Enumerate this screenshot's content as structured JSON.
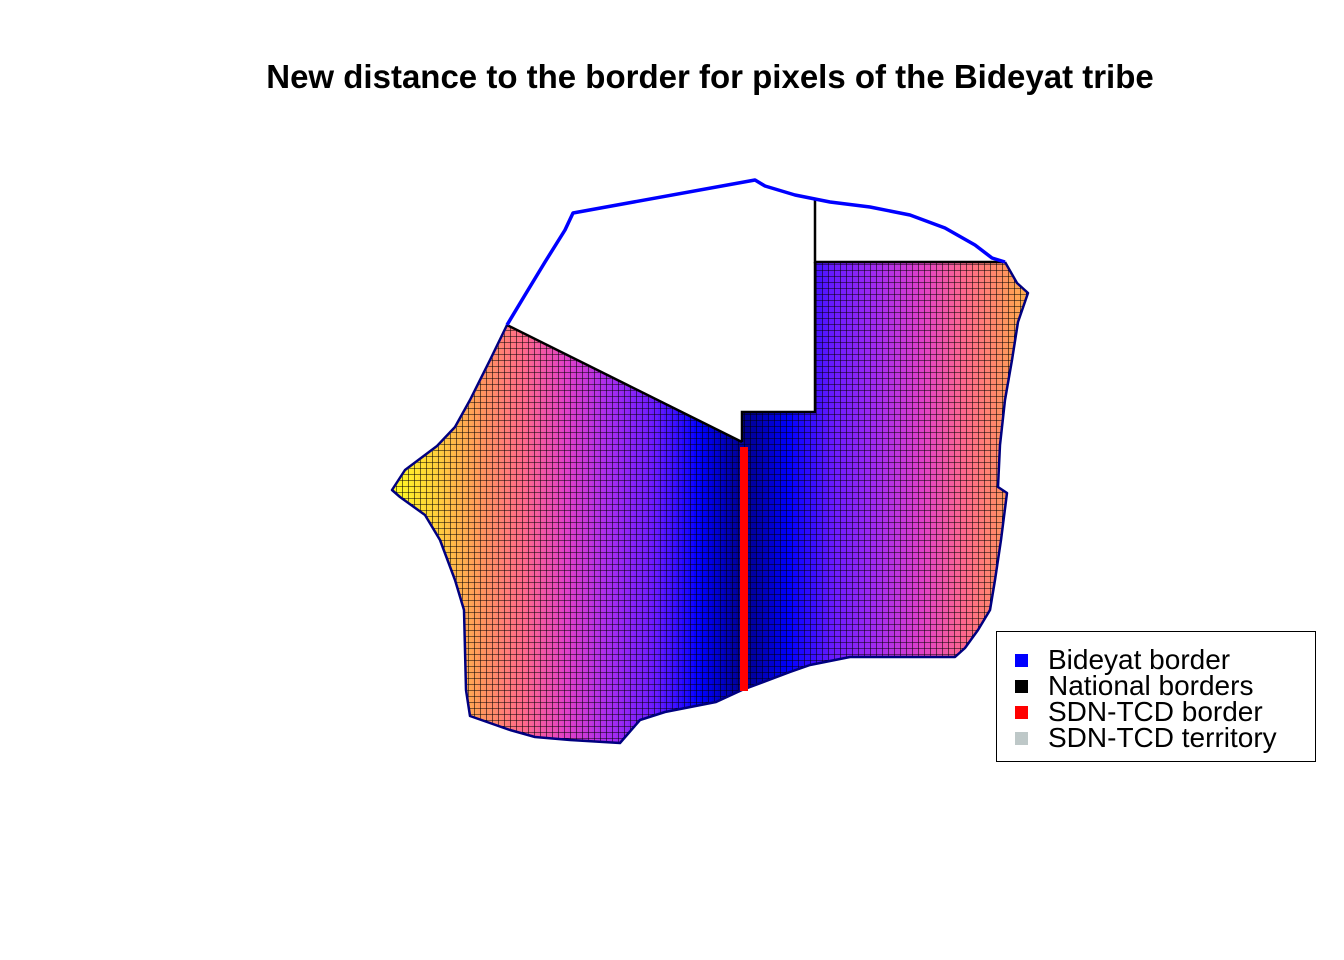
{
  "title": "New distance to the border for pixels of the Bideyat tribe",
  "legend": {
    "items": [
      {
        "label": "Bideyat border",
        "color": "#0000ff"
      },
      {
        "label": "National borders",
        "color": "#000000"
      },
      {
        "label": "SDN-TCD border",
        "color": "#ff0000"
      },
      {
        "label": "SDN-TCD territory",
        "color": "#bec8c8"
      }
    ]
  },
  "map": {
    "colors": {
      "bideyat_border": "#0000ff",
      "national_borders": "#000000",
      "sdn_tcd_border": "#ff0000",
      "pixel_grid_lines": "#000000",
      "region_outline": "#000080"
    },
    "color_scale": [
      "#00008b",
      "#0000ff",
      "#6a1bff",
      "#a52cf0",
      "#e040c8",
      "#ff6a8a",
      "#ff9a5a",
      "#ffd33a",
      "#ffff20"
    ]
  }
}
